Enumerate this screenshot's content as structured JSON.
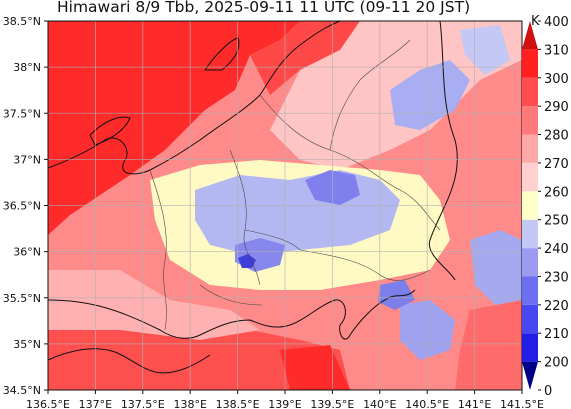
{
  "title": "Himawari 8/9 Tbb, 2025-09-11 11 UTC (09-11 20 JST)",
  "map": {
    "lon_range": [
      136.5,
      141.5
    ],
    "lat_range": [
      34.5,
      38.5
    ],
    "x_tick_labels": [
      "136.5°E",
      "137°E",
      "137.5°E",
      "138°E",
      "138.5°E",
      "139°E",
      "139.5°E",
      "140°E",
      "140.5°E",
      "141°E",
      "141.5°E"
    ],
    "y_tick_labels": [
      "34.5°N",
      "35°N",
      "35.5°N",
      "36°N",
      "36.5°N",
      "37°N",
      "37.5°N",
      "38°N",
      "38.5°N"
    ],
    "gridlines": true
  },
  "colorbar": {
    "unit": "K",
    "levels": [
      "0",
      "200",
      "210",
      "220",
      "230",
      "240",
      "250",
      "260",
      "270",
      "280",
      "290",
      "300",
      "310",
      "400"
    ],
    "colors": [
      "#00008b",
      "#1f1fe6",
      "#4848f0",
      "#6e6ef0",
      "#9b9bf0",
      "#c4c8f4",
      "#ffffc8",
      "#ffd0d0",
      "#ffa8a8",
      "#ff7a7a",
      "#ff4c4c",
      "#ff2020",
      "#d01010"
    ]
  }
}
